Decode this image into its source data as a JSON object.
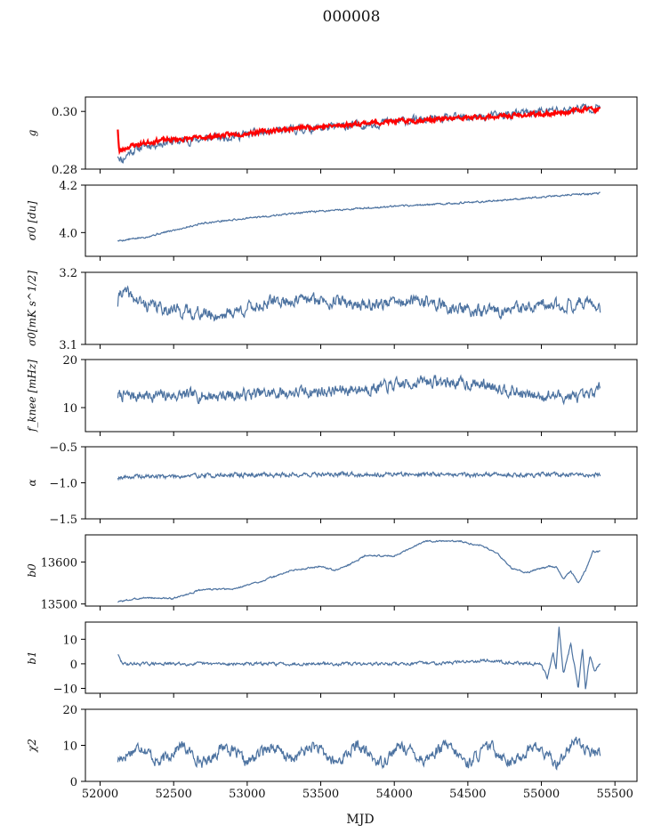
{
  "figure": {
    "title": "000008",
    "xlabel": "MJD"
  },
  "chart_data": [
    {
      "type": "line",
      "ylabel": "g",
      "xlim": [
        51900,
        55650
      ],
      "ylim": [
        0.28,
        0.305
      ],
      "yticks": [
        0.28,
        0.3
      ],
      "ytick_labels": [
        "0.28",
        "0.30"
      ],
      "series": [
        {
          "color": "#4c72a0",
          "x": [
            52120,
            52150,
            52200,
            52300,
            52400,
            52600,
            52800,
            53000,
            53200,
            53400,
            53600,
            53800,
            54000,
            54200,
            54400,
            54600,
            54800,
            55000,
            55200,
            55300,
            55400
          ],
          "y": [
            0.285,
            0.283,
            0.286,
            0.288,
            0.289,
            0.29,
            0.291,
            0.292,
            0.293,
            0.294,
            0.2945,
            0.2955,
            0.2965,
            0.297,
            0.2975,
            0.298,
            0.299,
            0.3,
            0.3005,
            0.3015,
            0.301
          ],
          "noise": 0.0012,
          "seed": 11
        },
        {
          "color": "#ff0000",
          "x": [
            52120,
            52130,
            52200,
            52300,
            52400,
            52600,
            52800,
            53000,
            53200,
            53400,
            53600,
            53800,
            54000,
            54200,
            54400,
            54600,
            54800,
            55000,
            55200,
            55300,
            55400
          ],
          "y": [
            0.294,
            0.286,
            0.288,
            0.289,
            0.29,
            0.2905,
            0.2915,
            0.2925,
            0.2935,
            0.2945,
            0.295,
            0.296,
            0.2965,
            0.297,
            0.2975,
            0.298,
            0.2985,
            0.299,
            0.3,
            0.301,
            0.3005
          ],
          "noise": 0.0006,
          "seed": 23,
          "width": 2.2
        }
      ]
    },
    {
      "type": "line",
      "ylabel": "σ0 [du]",
      "xlim": [
        51900,
        55650
      ],
      "ylim": [
        3.9,
        4.2
      ],
      "yticks": [
        4.0,
        4.2
      ],
      "ytick_labels": [
        "4.0",
        "4.2"
      ],
      "series": [
        {
          "color": "#4c72a0",
          "x": [
            52120,
            52300,
            52500,
            52700,
            53000,
            53300,
            53600,
            54000,
            54300,
            54600,
            55000,
            55200,
            55400
          ],
          "y": [
            3.965,
            3.98,
            4.01,
            4.04,
            4.06,
            4.08,
            4.095,
            4.11,
            4.12,
            4.13,
            4.15,
            4.16,
            4.165
          ],
          "noise": 0.003,
          "seed": 5
        }
      ]
    },
    {
      "type": "line",
      "ylabel": "σ0[mK s^1/2]",
      "xlim": [
        51900,
        55650
      ],
      "ylim": [
        3.1,
        3.2
      ],
      "yticks": [
        3.1,
        3.2
      ],
      "ytick_labels": [
        "3.1",
        "3.2"
      ],
      "series": [
        {
          "color": "#4c72a0",
          "x": [
            52120,
            52140,
            52300,
            52600,
            52800,
            53000,
            53200,
            53500,
            53800,
            54000,
            54200,
            54400,
            54600,
            54800,
            55000,
            55200,
            55300,
            55400
          ],
          "y": [
            3.156,
            3.175,
            3.155,
            3.145,
            3.14,
            3.15,
            3.16,
            3.162,
            3.155,
            3.158,
            3.16,
            3.15,
            3.145,
            3.148,
            3.152,
            3.155,
            3.16,
            3.148
          ],
          "noise": 0.007,
          "seed": 41
        }
      ]
    },
    {
      "type": "line",
      "ylabel": "f_knee [mHz]",
      "xlim": [
        51900,
        55650
      ],
      "ylim": [
        5,
        20
      ],
      "yticks": [
        10,
        20
      ],
      "ytick_labels": [
        "10",
        "20"
      ],
      "series": [
        {
          "color": "#4c72a0",
          "x": [
            52120,
            52400,
            52800,
            53200,
            53600,
            54000,
            54200,
            54500,
            54700,
            54900,
            55100,
            55300,
            55400
          ],
          "y": [
            12.5,
            12.5,
            12.5,
            13,
            13.5,
            14.5,
            15.5,
            15,
            14.5,
            12.5,
            12.5,
            12,
            14
          ],
          "noise": 1.0,
          "seed": 7
        }
      ]
    },
    {
      "type": "line",
      "ylabel": "α",
      "xlim": [
        51900,
        55650
      ],
      "ylim": [
        -1.5,
        -0.5
      ],
      "yticks": [
        -1.5,
        -1.0,
        -0.5
      ],
      "ytick_labels": [
        "−1.5",
        "−1.0",
        "−0.5"
      ],
      "series": [
        {
          "color": "#4c72a0",
          "x": [
            52120,
            53000,
            54000,
            55000,
            55400
          ],
          "y": [
            -0.92,
            -0.89,
            -0.88,
            -0.89,
            -0.89
          ],
          "noise": 0.025,
          "seed": 19
        }
      ]
    },
    {
      "type": "line",
      "ylabel": "b0",
      "xlim": [
        51900,
        55650
      ],
      "ylim": [
        13495,
        13665
      ],
      "yticks": [
        13500,
        13600
      ],
      "ytick_labels": [
        "13500",
        "13600"
      ],
      "series": [
        {
          "color": "#4c72a0",
          "x": [
            52120,
            52150,
            52300,
            52500,
            52700,
            52900,
            53100,
            53300,
            53500,
            53600,
            53700,
            53800,
            54000,
            54100,
            54200,
            54300,
            54450,
            54500,
            54600,
            54700,
            54800,
            54900,
            55000,
            55050,
            55100,
            55150,
            55200,
            55250,
            55300,
            55350,
            55400
          ],
          "y": [
            13505,
            13507,
            13515,
            13513,
            13535,
            13535,
            13555,
            13580,
            13590,
            13580,
            13595,
            13615,
            13615,
            13630,
            13650,
            13650,
            13650,
            13645,
            13640,
            13620,
            13585,
            13575,
            13585,
            13590,
            13588,
            13560,
            13580,
            13550,
            13580,
            13625,
            13625
          ],
          "noise": 1.5,
          "seed": 3
        }
      ]
    },
    {
      "type": "line",
      "ylabel": "b1",
      "xlim": [
        51900,
        55650
      ],
      "ylim": [
        -12,
        17
      ],
      "yticks": [
        -10,
        0,
        10
      ],
      "ytick_labels": [
        "−10",
        "0",
        "10"
      ],
      "series": [
        {
          "color": "#4c72a0",
          "x": [
            52120,
            52140,
            52160,
            53000,
            54000,
            54400,
            54600,
            54700,
            54900,
            55000,
            55040,
            55080,
            55100,
            55120,
            55150,
            55200,
            55250,
            55280,
            55300,
            55330,
            55360,
            55400
          ],
          "y": [
            4,
            1,
            0,
            0,
            0,
            0.5,
            1.5,
            1,
            0,
            0,
            -6,
            5,
            -2,
            15,
            -4,
            8,
            -10,
            6,
            -10,
            3,
            -3,
            0
          ],
          "noise": 0.5,
          "seed": 29
        }
      ]
    },
    {
      "type": "line",
      "ylabel": "χ2",
      "xlim": [
        51900,
        55650
      ],
      "ylim": [
        0,
        20
      ],
      "yticks": [
        0,
        10,
        20
      ],
      "ytick_labels": [
        "0",
        "10",
        "20"
      ],
      "series": [
        {
          "color": "#4c72a0",
          "x": [
            52120,
            52280,
            52400,
            52550,
            52700,
            52850,
            53000,
            53150,
            53300,
            53450,
            53600,
            53750,
            53900,
            54050,
            54200,
            54350,
            54500,
            54650,
            54800,
            54950,
            55100,
            55250,
            55300,
            55400
          ],
          "y": [
            6,
            10,
            5,
            10,
            5,
            10,
            5,
            10,
            6,
            10,
            5,
            10,
            5,
            10,
            6,
            10,
            5,
            10,
            5,
            10,
            5,
            12,
            8,
            8
          ],
          "noise": 1.3,
          "seed": 17
        }
      ]
    }
  ],
  "xaxis": {
    "ticks": [
      52000,
      52500,
      53000,
      53500,
      54000,
      54500,
      55000,
      55500
    ],
    "tick_labels": [
      "52000",
      "52500",
      "53000",
      "53500",
      "54000",
      "54500",
      "55000",
      "55500"
    ]
  }
}
